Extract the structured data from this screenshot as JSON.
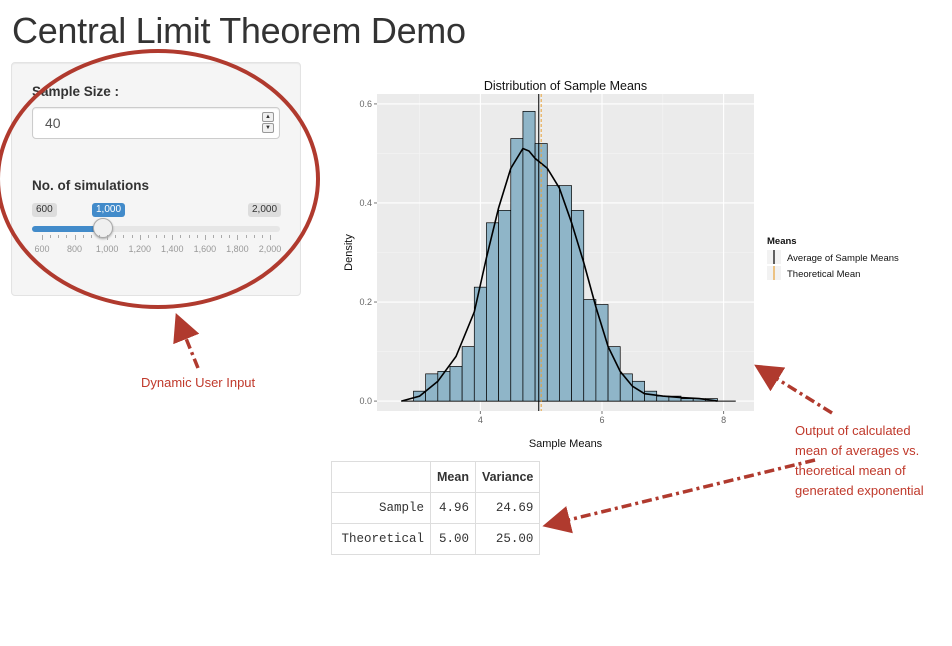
{
  "app": {
    "title": "Central Limit Theorem Demo"
  },
  "sample_size": {
    "label": "Sample Size :",
    "value": "40"
  },
  "simulations": {
    "label": "No. of simulations",
    "min": 600,
    "max": 2000,
    "value": 1000,
    "min_label": "600",
    "max_label": "2,000",
    "value_label": "1,000",
    "ticks": [
      "600",
      "800",
      "1,000",
      "1,200",
      "1,400",
      "1,600",
      "1,800",
      "2,000"
    ]
  },
  "annotations": {
    "input_note": "Dynamic User Input",
    "output_note": [
      "Output of calculated",
      "mean of averages vs.",
      "theoretical mean of",
      "generated exponential"
    ]
  },
  "colors": {
    "accent": "#428bca",
    "annotation": "#c0392b",
    "bars": "#8fb5c8",
    "sample_mean_line": "#000000",
    "theoretical_mean_line": "#e8a23a"
  },
  "chart_data": {
    "type": "bar",
    "title": "Distribution of Sample Means",
    "xlabel": "Sample Means",
    "ylabel": "Density",
    "xlim": [
      2.3,
      8.5
    ],
    "ylim": [
      -0.02,
      0.62
    ],
    "xticks": [
      4,
      6,
      8
    ],
    "yticks": [
      0.0,
      0.2,
      0.4,
      0.6
    ],
    "ytick_labels": [
      "0.0",
      "0.2",
      "0.4",
      "0.6"
    ],
    "bin_width": 0.2,
    "bin_starts": [
      2.9,
      3.1,
      3.3,
      3.5,
      3.7,
      3.9,
      4.1,
      4.3,
      4.5,
      4.7,
      4.9,
      5.1,
      5.3,
      5.5,
      5.7,
      5.9,
      6.1,
      6.3,
      6.5,
      6.7,
      6.9,
      7.1,
      7.3,
      7.5,
      7.7
    ],
    "density": [
      0.02,
      0.055,
      0.06,
      0.07,
      0.11,
      0.23,
      0.36,
      0.385,
      0.53,
      0.585,
      0.52,
      0.435,
      0.435,
      0.385,
      0.205,
      0.195,
      0.11,
      0.055,
      0.04,
      0.02,
      0.01,
      0.01,
      0.005,
      0.005,
      0.005
    ],
    "density_curve": {
      "x": [
        2.7,
        3.0,
        3.3,
        3.6,
        3.9,
        4.1,
        4.3,
        4.5,
        4.7,
        4.8,
        4.9,
        5.1,
        5.3,
        5.5,
        5.7,
        5.9,
        6.1,
        6.3,
        6.5,
        6.7,
        7.0,
        7.3,
        7.6,
        7.9
      ],
      "y": [
        0.0,
        0.01,
        0.04,
        0.09,
        0.18,
        0.29,
        0.39,
        0.47,
        0.51,
        0.505,
        0.49,
        0.47,
        0.43,
        0.36,
        0.28,
        0.19,
        0.11,
        0.06,
        0.03,
        0.015,
        0.01,
        0.007,
        0.005,
        0.0
      ]
    },
    "vlines": [
      {
        "name": "Average of Sample Means",
        "x": 4.96,
        "color": "#000000",
        "style": "solid"
      },
      {
        "name": "Theoretical Mean",
        "x": 5.0,
        "color": "#e8a23a",
        "style": "dashed"
      }
    ],
    "legend": {
      "title": "Means",
      "position": "right",
      "entries": [
        "Average of Sample Means",
        "Theoretical Mean"
      ]
    },
    "grid": true
  },
  "table": {
    "headers": [
      "",
      "Mean",
      "Variance"
    ],
    "rows": [
      {
        "label": "Sample",
        "mean": "4.96",
        "variance": "24.69"
      },
      {
        "label": "Theoretical",
        "mean": "5.00",
        "variance": "25.00"
      }
    ]
  }
}
